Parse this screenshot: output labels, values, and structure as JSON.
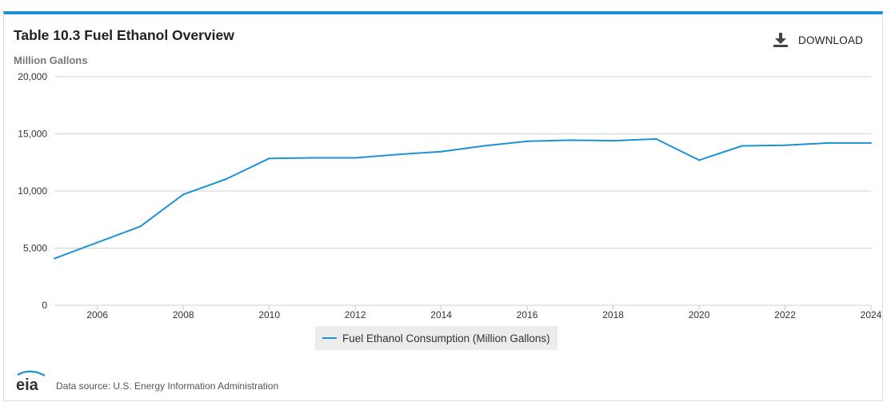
{
  "header": {
    "title": "Table 10.3 Fuel Ethanol Overview",
    "units": "Million Gallons",
    "download_label": "DOWNLOAD"
  },
  "footer": {
    "logo_text": "eia",
    "source": "Data source: U.S. Energy Information Administration"
  },
  "colors": {
    "accent": "#1a93d6",
    "series": "#1a93d6",
    "grid": "#d0d0d0"
  },
  "chart_data": {
    "type": "line",
    "title": "Table 10.3 Fuel Ethanol Overview",
    "ylabel": "Million Gallons",
    "xlabel": "",
    "xlim": [
      2005,
      2024
    ],
    "ylim": [
      0,
      20000
    ],
    "x_ticks": [
      2006,
      2008,
      2010,
      2012,
      2014,
      2016,
      2018,
      2020,
      2022,
      2024
    ],
    "y_ticks": [
      0,
      5000,
      10000,
      15000,
      20000
    ],
    "y_tick_labels": [
      "0",
      "5,000",
      "10,000",
      "15,000",
      "20,000"
    ],
    "grid": true,
    "legend_position": "bottom-center",
    "series": [
      {
        "name": "Fuel Ethanol Consumption (Million Gallons)",
        "x": [
          2005,
          2006,
          2007,
          2008,
          2009,
          2010,
          2011,
          2012,
          2013,
          2014,
          2015,
          2016,
          2017,
          2018,
          2019,
          2020,
          2021,
          2022,
          2023,
          2024
        ],
        "values": [
          4100,
          5500,
          6900,
          9700,
          11050,
          12850,
          12900,
          12900,
          13200,
          13450,
          13950,
          14350,
          14450,
          14400,
          14550,
          12700,
          13950,
          14000,
          14200,
          14200
        ]
      }
    ]
  }
}
